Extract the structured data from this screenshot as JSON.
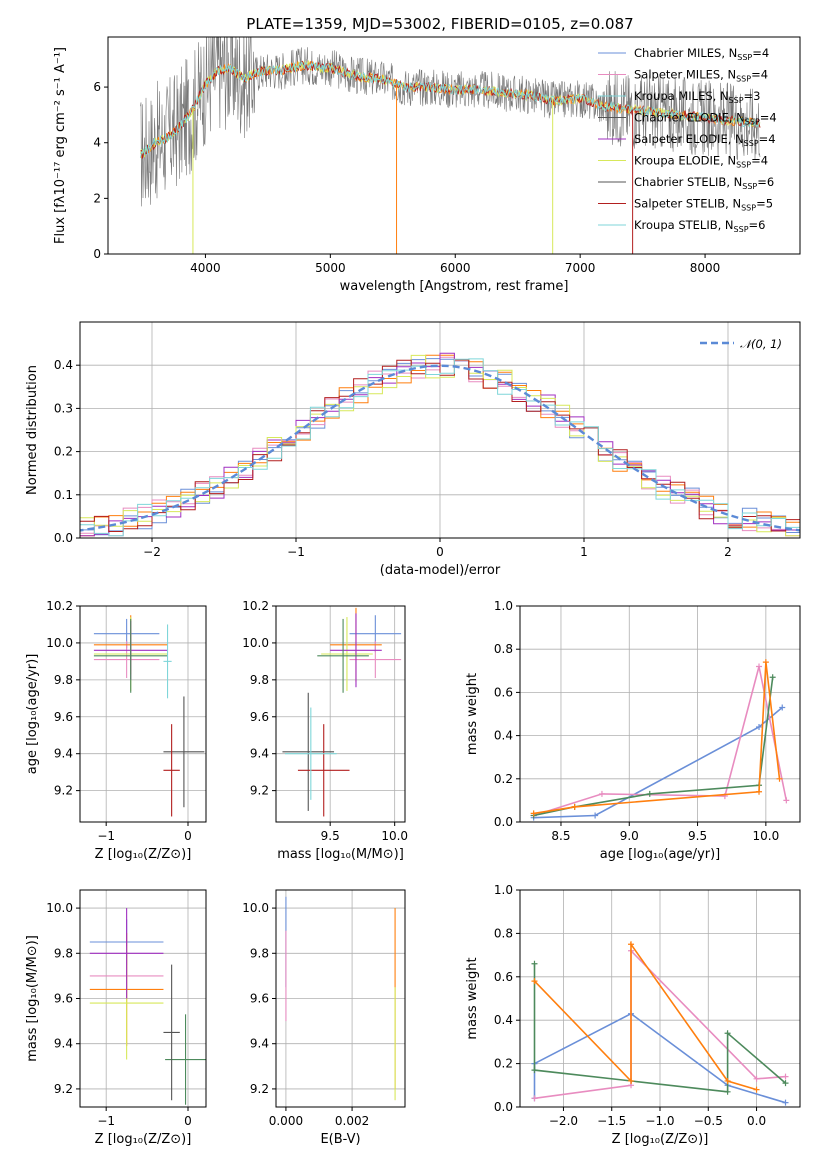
{
  "title": "PLATE=1359, MJD=53002, FIBERID=0105, z=0.087",
  "colors": [
    "#6a8fd8",
    "#e88cc0",
    "#4d8a5c",
    "#ff7f0e",
    "#a02fc0",
    "#d7e85a",
    "#555555",
    "#b21f1f",
    "#7fd6d9"
  ],
  "legend_spectrum": [
    {
      "text": "Chabrier MILES, N",
      "sub": "SSP",
      "tail": "=4"
    },
    {
      "text": "Salpeter MILES, N",
      "sub": "SSP",
      "tail": "=4"
    },
    {
      "text": "Kroupa MILES, N",
      "sub": "SSP",
      "tail": "=3"
    },
    {
      "text": "Chabrier ELODIE, N",
      "sub": "SSP",
      "tail": "=4"
    },
    {
      "text": "Salpeter ELODIE, N",
      "sub": "SSP",
      "tail": "=4"
    },
    {
      "text": "Kroupa ELODIE, N",
      "sub": "SSP",
      "tail": "=4"
    },
    {
      "text": "Chabrier STELIB, N",
      "sub": "SSP",
      "tail": "=6"
    },
    {
      "text": "Salpeter STELIB, N",
      "sub": "SSP",
      "tail": "=5"
    },
    {
      "text": "Kroupa STELIB, N",
      "sub": "SSP",
      "tail": "=6"
    }
  ],
  "legend_hist": "𝒩(0, 1)",
  "chart_data": [
    {
      "id": "spectrum",
      "type": "line",
      "xlabel": "wavelength [Angstrom, rest frame]",
      "ylabel": "Flux [fλ10⁻¹⁷ erg cm⁻² s⁻¹ A⁻¹]",
      "xlim": [
        3220,
        8760
      ],
      "ylim": [
        0,
        7.8
      ],
      "xticks": [
        4000,
        5000,
        6000,
        7000,
        8000
      ],
      "yticks": [
        0,
        2,
        4,
        6
      ],
      "x": [
        3500,
        3600,
        3700,
        3800,
        3900,
        4000,
        4100,
        4200,
        4300,
        4400,
        4500,
        4600,
        4700,
        4800,
        4900,
        5000,
        5200,
        5400,
        5600,
        5800,
        6000,
        6200,
        6400,
        6600,
        6800,
        7000,
        7200,
        7400,
        7600,
        7800,
        8000,
        8200,
        8400
      ],
      "model": [
        3.6,
        4.0,
        4.2,
        4.6,
        5.2,
        6.1,
        6.6,
        6.7,
        6.3,
        6.5,
        6.6,
        6.6,
        6.7,
        6.8,
        6.7,
        6.7,
        6.4,
        6.3,
        6.0,
        6.0,
        5.9,
        5.9,
        5.8,
        5.7,
        5.5,
        5.6,
        5.3,
        5.2,
        5.1,
        5.0,
        4.9,
        4.8,
        4.7
      ],
      "noise": 1.0
    },
    {
      "id": "residual-histogram",
      "type": "bar",
      "xlabel": "(data-model)/error",
      "ylabel": "Normed distribution",
      "xlim": [
        -2.5,
        2.5
      ],
      "ylim": [
        0,
        0.5
      ],
      "xticks": [
        -2,
        -1,
        0,
        1,
        2
      ],
      "yticks": [
        0.0,
        0.1,
        0.2,
        0.3,
        0.4
      ],
      "bin_width": 0.1,
      "reference_curve": "N(0,1)"
    },
    {
      "id": "age-vs-Z",
      "type": "scatter",
      "xlabel": "Z [log₁₀(Z/Z⊙)]",
      "ylabel": "age  [log₁₀(age/yr)]",
      "xlim": [
        -1.32,
        0.22
      ],
      "ylim": [
        9.03,
        10.2
      ],
      "xticks": [
        -1,
        0
      ],
      "yticks": [
        9.2,
        9.4,
        9.6,
        9.8,
        10.0,
        10.2
      ],
      "points": [
        {
          "x": -0.75,
          "xe": 0.4,
          "y": 10.05,
          "ye": 0.08
        },
        {
          "x": -0.75,
          "xe": 0.4,
          "y": 9.91,
          "ye": 0.1
        },
        {
          "x": -0.7,
          "xe": 0.45,
          "y": 9.99,
          "ye": 0.16
        },
        {
          "x": -0.7,
          "xe": 0.45,
          "y": 9.94,
          "ye": 0.2
        },
        {
          "x": -0.7,
          "xe": 0.45,
          "y": 9.96,
          "ye": 0.16
        },
        {
          "x": -0.7,
          "xe": 0.45,
          "y": 9.93,
          "ye": 0.2
        },
        {
          "x": -0.05,
          "xe": 0.25,
          "y": 9.41,
          "ye": 0.3
        },
        {
          "x": -0.2,
          "xe": 0.1,
          "y": 9.31,
          "ye": 0.25
        },
        {
          "x": -0.25,
          "xe": 0.05,
          "y": 9.9,
          "ye": 0.2
        }
      ]
    },
    {
      "id": "age-vs-mass",
      "type": "scatter",
      "xlabel": "mass [log₁₀(M/M⊙)]",
      "ylabel": "",
      "xlim": [
        9.08,
        10.08
      ],
      "ylim": [
        9.03,
        10.2
      ],
      "xticks": [
        9.5,
        10.0
      ],
      "yticks": [
        9.2,
        9.4,
        9.6,
        9.8,
        10.0,
        10.2
      ],
      "points": [
        {
          "x": 9.85,
          "xe": 0.2,
          "y": 10.05,
          "ye": 0.1
        },
        {
          "x": 9.85,
          "xe": 0.2,
          "y": 9.91,
          "ye": 0.1
        },
        {
          "x": 9.7,
          "xe": 0.2,
          "y": 9.99,
          "ye": 0.2
        },
        {
          "x": 9.63,
          "xe": 0.2,
          "y": 9.94,
          "ye": 0.2
        },
        {
          "x": 9.7,
          "xe": 0.2,
          "y": 9.96,
          "ye": 0.2
        },
        {
          "x": 9.6,
          "xe": 0.2,
          "y": 9.93,
          "ye": 0.2
        },
        {
          "x": 9.33,
          "xe": 0.2,
          "y": 9.41,
          "ye": 0.32
        },
        {
          "x": 9.45,
          "xe": 0.2,
          "y": 9.31,
          "ye": 0.25
        },
        {
          "x": 9.35,
          "xe": 0.2,
          "y": 9.4,
          "ye": 0.25
        }
      ]
    },
    {
      "id": "weight-vs-age",
      "type": "line",
      "xlabel": "age  [log₁₀(age/yr)]",
      "ylabel": "mass weight",
      "xlim": [
        8.2,
        10.25
      ],
      "ylim": [
        0.0,
        1.0
      ],
      "xticks": [
        8.5,
        9.0,
        9.5,
        10.0
      ],
      "yticks": [
        0.0,
        0.2,
        0.4,
        0.6,
        0.8,
        1.0
      ],
      "series": [
        {
          "x": [
            8.3,
            8.75,
            9.95,
            10.12
          ],
          "y": [
            0.02,
            0.03,
            0.44,
            0.53
          ]
        },
        {
          "x": [
            8.3,
            8.8,
            9.7,
            9.95,
            10.15
          ],
          "y": [
            0.03,
            0.13,
            0.12,
            0.72,
            0.1
          ]
        },
        {
          "x": [
            8.3,
            8.6,
            9.15,
            9.95,
            10.05
          ],
          "y": [
            0.03,
            0.07,
            0.13,
            0.17,
            0.67
          ]
        },
        {
          "x": [
            8.3,
            8.6,
            9.95,
            10.0,
            10.1
          ],
          "y": [
            0.04,
            0.07,
            0.14,
            0.74,
            0.2
          ]
        }
      ]
    },
    {
      "id": "mass-vs-Z",
      "type": "scatter",
      "xlabel": "Z [log₁₀(Z/Z⊙)]",
      "ylabel": "mass [log₁₀(M/M⊙)]",
      "xlim": [
        -1.32,
        0.22
      ],
      "ylim": [
        9.12,
        10.08
      ],
      "xticks": [
        -1,
        0
      ],
      "yticks": [
        9.2,
        9.4,
        9.6,
        9.8,
        10.0
      ],
      "points": [
        {
          "x": -0.75,
          "xe": 0.45,
          "y": 9.85,
          "ye": 0.1
        },
        {
          "x": -0.75,
          "xe": 0.45,
          "y": 9.7,
          "ye": 0.1
        },
        {
          "x": -0.75,
          "xe": 0.45,
          "y": 9.64,
          "ye": 0.25
        },
        {
          "x": -0.75,
          "xe": 0.45,
          "y": 9.58,
          "ye": 0.25
        },
        {
          "x": -0.75,
          "xe": 0.45,
          "y": 9.8,
          "ye": 0.2
        },
        {
          "x": -0.03,
          "xe": 0.25,
          "y": 9.33,
          "ye": 0.2
        },
        {
          "x": -0.2,
          "xe": 0.1,
          "y": 9.45,
          "ye": 0.3
        }
      ]
    },
    {
      "id": "mass-vs-EBV",
      "type": "scatter",
      "xlabel": "E(B-V)",
      "ylabel": "",
      "xlim": [
        -0.0003,
        0.0036
      ],
      "ylim": [
        9.12,
        10.08
      ],
      "xticks": [
        0.0,
        0.002
      ],
      "yticks": [
        9.2,
        9.4,
        9.6,
        9.8,
        10.0
      ],
      "points": [
        {
          "x": 0.0,
          "y": 9.85,
          "ye": 0.2
        },
        {
          "x": 0.0,
          "y": 9.7,
          "ye": 0.2
        },
        {
          "x": 0.0033,
          "y": 9.6,
          "ye": 0.4
        },
        {
          "x": 0.0033,
          "y": 9.4,
          "ye": 0.25
        }
      ]
    },
    {
      "id": "weight-vs-Z",
      "type": "line",
      "xlabel": "Z [log₁₀(Z/Z⊙)]",
      "ylabel": "mass weight",
      "xlim": [
        -2.45,
        0.45
      ],
      "ylim": [
        0.0,
        1.0
      ],
      "xticks": [
        -2.0,
        -1.5,
        -1.0,
        -0.5,
        0.0
      ],
      "yticks": [
        0.0,
        0.2,
        0.4,
        0.6,
        0.8,
        1.0
      ],
      "series": [
        {
          "x": [
            -2.3,
            -2.3,
            -1.3,
            -0.3,
            0.3
          ],
          "y": [
            0.04,
            0.2,
            0.43,
            0.1,
            0.02
          ]
        },
        {
          "x": [
            -2.3,
            -1.3,
            -1.3,
            0.0,
            0.3
          ],
          "y": [
            0.04,
            0.1,
            0.72,
            0.13,
            0.14
          ]
        },
        {
          "x": [
            -2.3,
            -2.3,
            -0.3,
            -0.3,
            0.3
          ],
          "y": [
            0.66,
            0.17,
            0.07,
            0.34,
            0.11
          ]
        },
        {
          "x": [
            -2.3,
            -1.3,
            -1.3,
            -0.3,
            0.0
          ],
          "y": [
            0.58,
            0.12,
            0.75,
            0.12,
            0.08
          ]
        }
      ]
    }
  ]
}
